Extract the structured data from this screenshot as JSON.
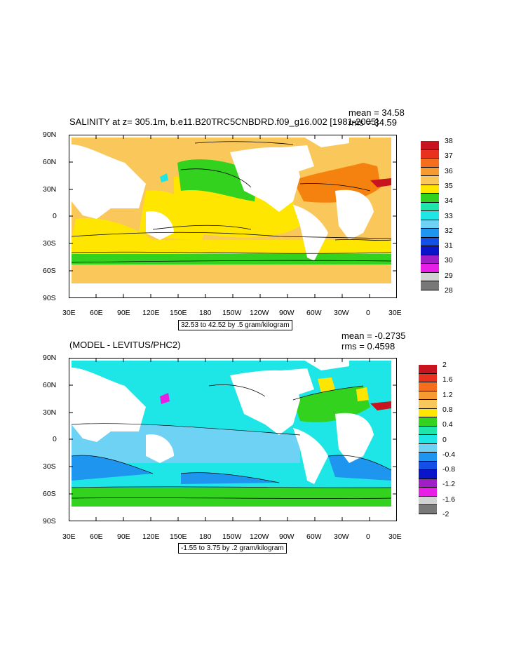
{
  "panels": [
    {
      "title": "SALINITY at z= 305.1m, b.e11.B20TRC5CNBDRD.f09_g16.002 [1981-2005]",
      "mean": "mean = 34.58",
      "rms": "rms = 34.59",
      "contour_info": "32.53 to 42.52 by .5 gram/kilogram",
      "lat_labels": [
        "90N",
        "60N",
        "30N",
        "0",
        "30S",
        "60S",
        "90S"
      ],
      "lon_labels": [
        "30E",
        "60E",
        "90E",
        "120E",
        "150E",
        "180",
        "150W",
        "120W",
        "90W",
        "60W",
        "30W",
        "0",
        "30E"
      ],
      "colorbar": {
        "labels": [
          "38",
          "37",
          "36",
          "35",
          "34",
          "33",
          "32",
          "31",
          "30",
          "29",
          "28"
        ],
        "colors": [
          "#c8141e",
          "#e8321e",
          "#f56e1e",
          "#f59b32",
          "#fac85a",
          "#ffe600",
          "#32d21e",
          "#1ee6aa",
          "#1ee6e6",
          "#6ed2f5",
          "#1e96f0",
          "#1450e6",
          "#0a14c8",
          "#a01ec8",
          "#e61ee6",
          "#d2d2d2",
          "#787878"
        ]
      }
    },
    {
      "title": "(MODEL - LEVITUS/PHC2)",
      "mean": "mean = -0.2735",
      "rms": "rms = 0.4598",
      "contour_info": "-1.55 to 3.75 by .2 gram/kilogram",
      "lat_labels": [
        "90N",
        "60N",
        "30N",
        "0",
        "30S",
        "60S",
        "90S"
      ],
      "lon_labels": [
        "30E",
        "60E",
        "90E",
        "120E",
        "150E",
        "180",
        "150W",
        "120W",
        "90W",
        "60W",
        "30W",
        "0",
        "30E"
      ],
      "colorbar": {
        "labels": [
          "2",
          "1.6",
          "1.2",
          "0.8",
          "0.4",
          "0",
          "-0.4",
          "-0.8",
          "-1.2",
          "-1.6",
          "-2"
        ],
        "colors": [
          "#c8141e",
          "#e8321e",
          "#f56e1e",
          "#f59b32",
          "#fac85a",
          "#ffe600",
          "#32d21e",
          "#1ee6aa",
          "#1ee6e6",
          "#6ed2f5",
          "#1e96f0",
          "#1450e6",
          "#0a14c8",
          "#a01ec8",
          "#e61ee6",
          "#d2d2d2",
          "#787878"
        ]
      }
    }
  ],
  "map_colors": {
    "panel1": {
      "north_atlantic": "#f5820f",
      "subtropical": "#fac85a",
      "light_yellow": "#ffe600",
      "green": "#32d21e",
      "cyan": "#1ee6e6"
    },
    "panel2": {
      "base": "#1ee6e6",
      "light": "#6ed2f5",
      "blue": "#1e96f0",
      "green": "#32d21e",
      "yellow": "#ffe600",
      "red": "#c8141e",
      "magenta": "#e61ee6"
    }
  }
}
